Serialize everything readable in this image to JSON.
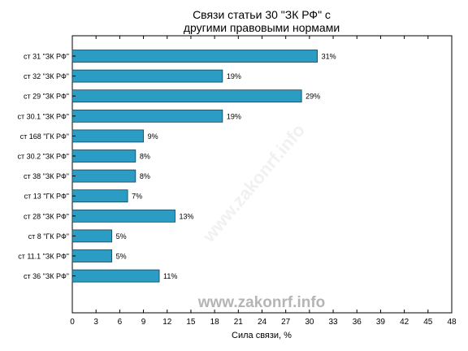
{
  "chart_data": {
    "type": "bar",
    "orientation": "horizontal",
    "title_lines": [
      "Связи статьи 30 \"ЗК РФ\" с",
      "другими правовыми нормами"
    ],
    "xlabel": "Сила связи, %",
    "ylabel": "",
    "xlim": [
      0,
      48
    ],
    "xticks": [
      0,
      3,
      6,
      9,
      12,
      15,
      18,
      21,
      24,
      27,
      30,
      33,
      36,
      39,
      42,
      45,
      48
    ],
    "grid": false,
    "categories": [
      "ст 31 \"ЗК РФ\"",
      "ст 32 \"ЗК РФ\"",
      "ст 29 \"ЗК РФ\"",
      "ст 30.1 \"ЗК РФ\"",
      "ст 168 \"ГК РФ\"",
      "ст 30.2 \"ЗК РФ\"",
      "ст 38 \"ЗК РФ\"",
      "ст 13 \"ГК РФ\"",
      "ст 28 \"ЗК РФ\"",
      "ст 8 \"ГК РФ\"",
      "ст 11.1 \"ЗК РФ\"",
      "ст 36 \"ЗК РФ\""
    ],
    "values": [
      31,
      19,
      29,
      19,
      9,
      8,
      8,
      7,
      13,
      5,
      5,
      11
    ],
    "data_labels": [
      "31%",
      "19%",
      "29%",
      "19%",
      "9%",
      "8%",
      "8%",
      "7%",
      "13%",
      "5%",
      "5%",
      "11%"
    ],
    "bar_color": "#2b9dc4"
  },
  "watermark": "www.zakonrf.info"
}
